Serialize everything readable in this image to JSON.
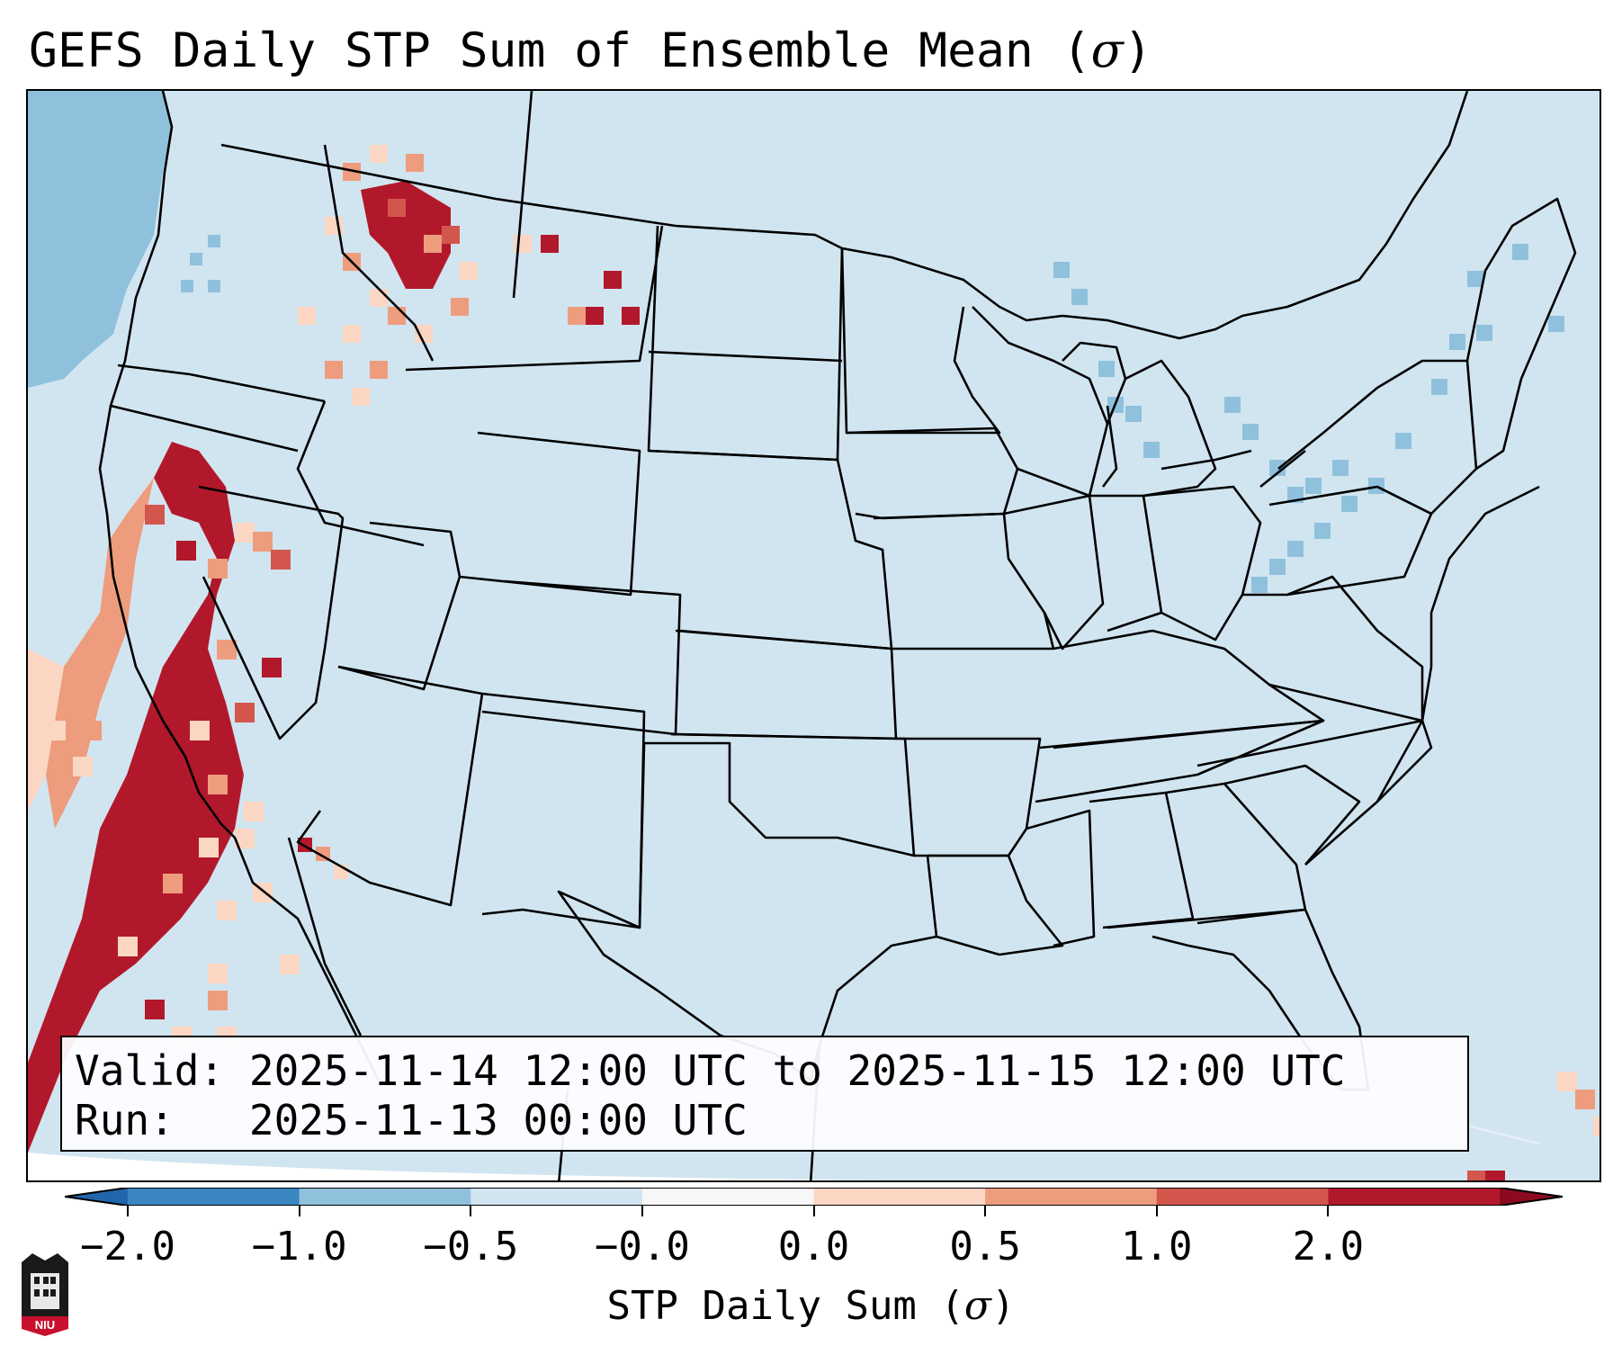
{
  "title": {
    "prefix": "GEFS Daily STP Sum of Ensemble Mean (",
    "symbol": "σ",
    "suffix": ")"
  },
  "info_box": {
    "valid_label": "Valid:",
    "valid_value": "2025-11-14 12:00 UTC to 2025-11-15 12:00 UTC",
    "run_label": "Run:",
    "run_value": "2025-11-13 00:00 UTC"
  },
  "colorbar": {
    "label_prefix": "STP Daily Sum (",
    "label_symbol": "σ",
    "label_suffix": ")",
    "ticks": [
      "−2.0",
      "−1.0",
      "−0.5",
      "−0.0",
      "0.0",
      "0.5",
      "1.0",
      "2.0"
    ],
    "colors": [
      "#3a86c2",
      "#8fc1dd",
      "#d1e5f0",
      "#f7f7f7",
      "#fbd6c2",
      "#ee9c7e",
      "#d3564d",
      "#b2182b"
    ],
    "under_color": "#2166ac",
    "over_color": "#8b0a1f"
  },
  "map": {
    "background_color": "#d1e5f0",
    "ocean_west_color": "#8fc1dd",
    "boundary_color": "#000000"
  },
  "logo": {
    "text": "NIU"
  }
}
